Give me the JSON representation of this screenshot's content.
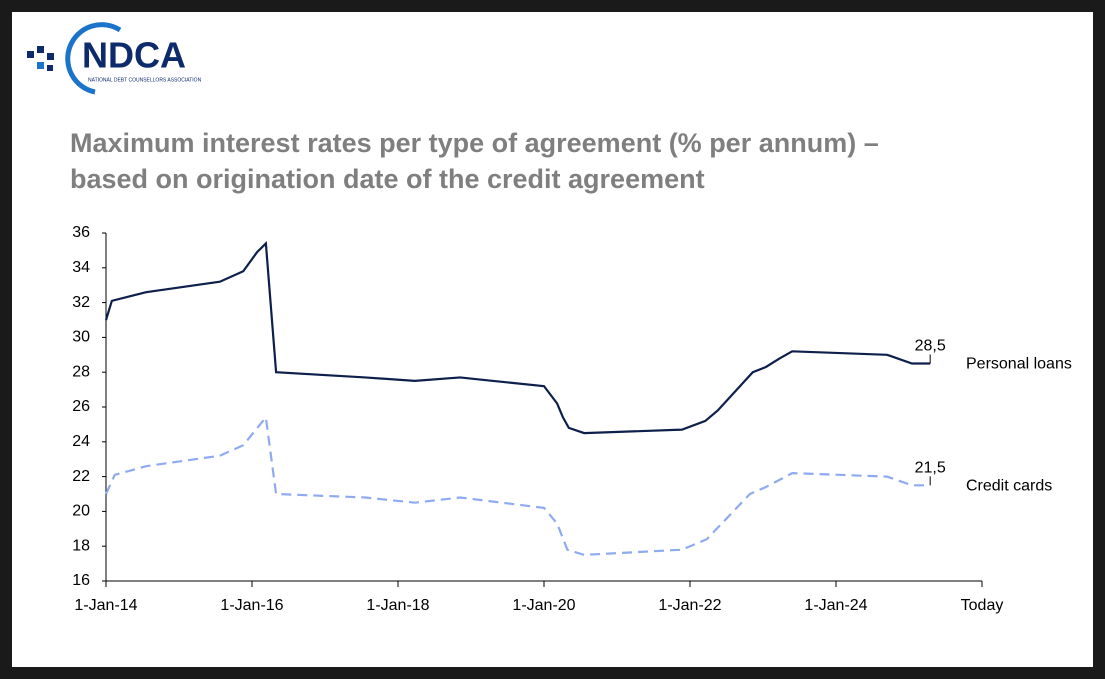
{
  "logo": {
    "name": "NDCA",
    "full_name": "NATIONAL DEBT COUNSELLORS ASSOCIATION"
  },
  "chart_data": {
    "type": "line",
    "title": [
      "Maximum interest rates per type of agreement (% per annum) –",
      "based on origination date of the credit agreement"
    ],
    "xlim": [
      2014,
      2026
    ],
    "xticks": [
      {
        "value": 2014,
        "label": "1-Jan-14"
      },
      {
        "value": 2016,
        "label": "1-Jan-16"
      },
      {
        "value": 2018,
        "label": "1-Jan-18"
      },
      {
        "value": 2020,
        "label": "1-Jan-20"
      },
      {
        "value": 2022,
        "label": "1-Jan-22"
      },
      {
        "value": 2024,
        "label": "1-Jan-24"
      },
      {
        "value": 2026,
        "label": "Today"
      }
    ],
    "ylim": [
      16,
      36
    ],
    "yticks": [
      16,
      18,
      20,
      22,
      24,
      26,
      28,
      30,
      32,
      34,
      36
    ],
    "grid": false,
    "series": [
      {
        "name": "Personal loans",
        "color": "#0d1f4a",
        "dashed": false,
        "x": [
          2014.0,
          2014.08,
          2014.55,
          2015.56,
          2015.88,
          2016.07,
          2016.19,
          2016.33,
          2017.55,
          2018.23,
          2018.85,
          2019.53,
          2020.0,
          2020.18,
          2020.26,
          2020.34,
          2020.55,
          2021.89,
          2022.21,
          2022.38,
          2022.86,
          2023.04,
          2023.23,
          2023.4,
          2024.7,
          2025.04,
          2025.29
        ],
        "values": [
          31.0,
          32.1,
          32.6,
          33.2,
          33.8,
          34.9,
          35.4,
          28.0,
          27.7,
          27.5,
          27.7,
          27.4,
          27.2,
          26.2,
          25.4,
          24.8,
          24.5,
          24.7,
          25.2,
          25.8,
          28.0,
          28.3,
          28.8,
          29.2,
          29.0,
          28.5,
          28.5
        ],
        "value_labels": [
          null,
          null,
          null,
          null,
          null,
          null,
          null,
          null,
          null,
          null,
          null,
          null,
          null,
          null,
          null,
          null,
          null,
          null,
          null,
          null,
          null,
          null,
          null,
          null,
          null,
          null,
          "28,5"
        ]
      },
      {
        "name": "Credit cards",
        "color": "#8faaf0",
        "dashed": true,
        "x": [
          2014.0,
          2014.12,
          2014.55,
          2015.56,
          2015.88,
          2016.19,
          2016.33,
          2017.55,
          2018.23,
          2018.85,
          2020.0,
          2020.18,
          2020.32,
          2020.55,
          2021.89,
          2022.23,
          2022.82,
          2023.04,
          2023.4,
          2024.7,
          2025.04,
          2025.29
        ],
        "values": [
          21.0,
          22.1,
          22.6,
          23.2,
          23.8,
          25.4,
          21.0,
          20.8,
          20.5,
          20.8,
          20.2,
          19.3,
          17.8,
          17.5,
          17.8,
          18.4,
          21.0,
          21.4,
          22.2,
          22.0,
          21.5,
          21.5
        ],
        "value_labels": [
          null,
          null,
          null,
          null,
          null,
          null,
          null,
          null,
          null,
          null,
          null,
          null,
          null,
          null,
          null,
          null,
          null,
          null,
          null,
          null,
          null,
          "21,5"
        ]
      }
    ]
  }
}
